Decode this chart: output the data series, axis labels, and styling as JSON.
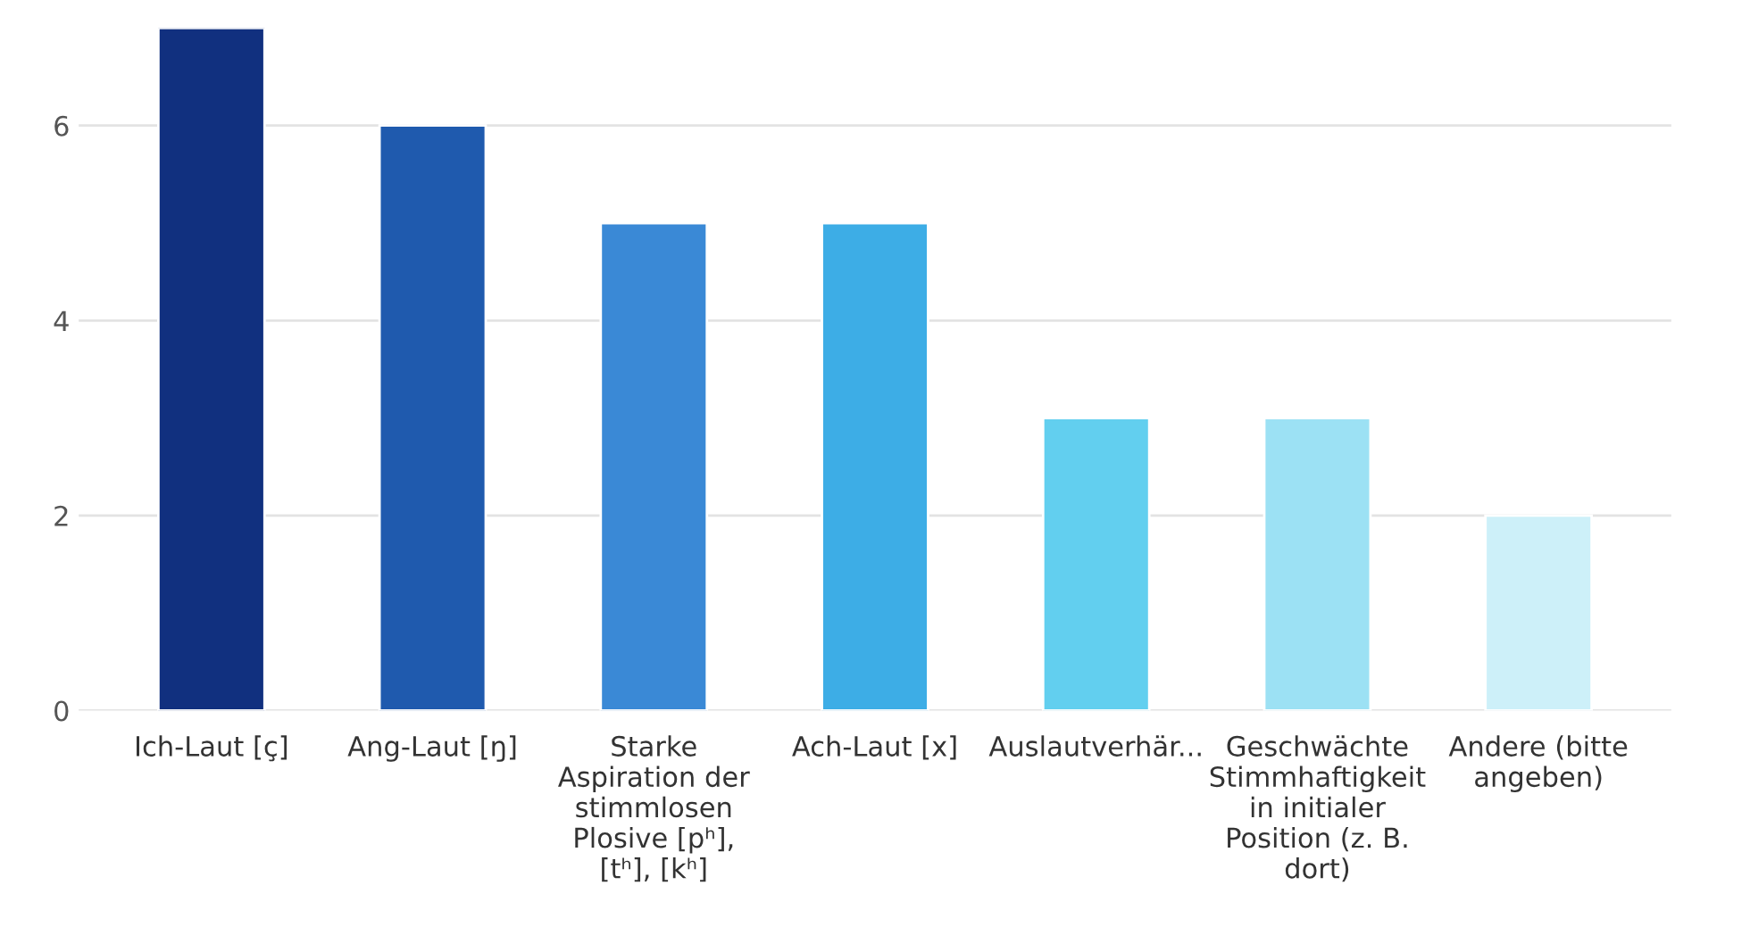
{
  "chart_data": {
    "type": "bar",
    "categories": [
      "Ich-Laut [ç]",
      "Ang-Laut [ŋ]",
      "Starke Aspiration der stimmlosen Plosive [pʰ], [tʰ], [kʰ]",
      "Ach-Laut [x]",
      "Auslautverhär...",
      "Geschwächte Stimmhaftigkeit in initialer Position (z. B. dort)",
      "Andere (bitte angeben)"
    ],
    "values": [
      7,
      6,
      5,
      5,
      3,
      3,
      2
    ],
    "colors": [
      "#11307f",
      "#1f5aae",
      "#3a89d6",
      "#3dade6",
      "#62cfef",
      "#9ce1f4",
      "#cdf0f9"
    ],
    "ylim": [
      0,
      7
    ],
    "yticks": [
      0,
      2,
      4,
      6
    ],
    "grid": "y"
  }
}
